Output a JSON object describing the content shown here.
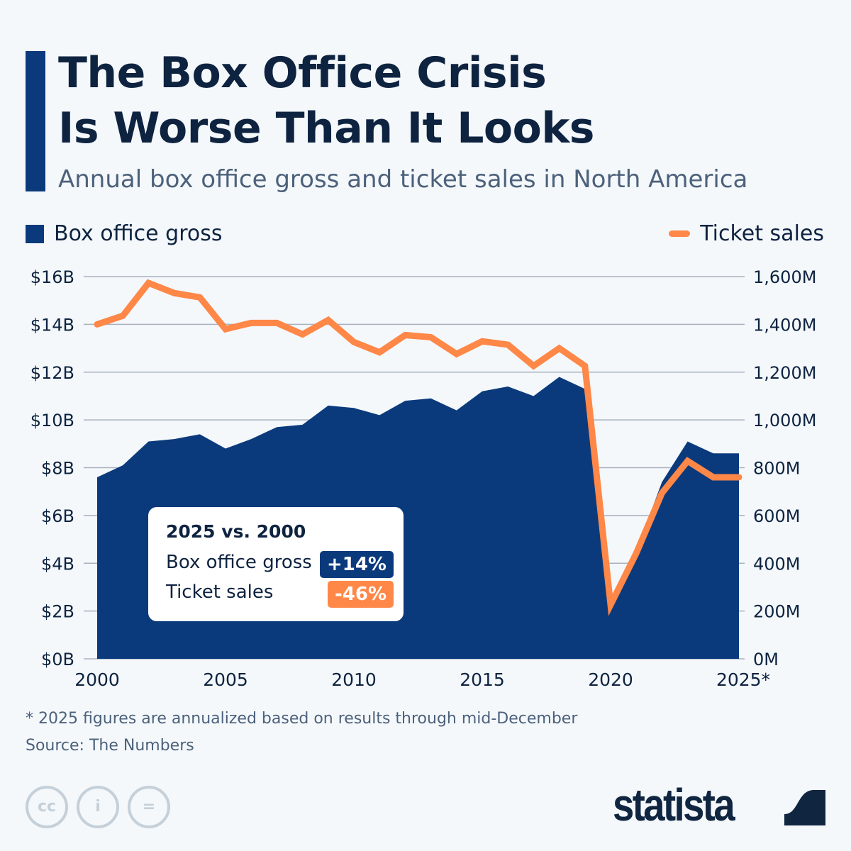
{
  "header": {
    "title_line1": "The Box Office Crisis",
    "title_line2": "Is Worse Than It Looks",
    "subtitle": "Annual box office gross and ticket sales in North America"
  },
  "colors": {
    "gross": "#0b3a7c",
    "tickets": "#ff8747",
    "grid": "#a9b1bf",
    "text": "#0e2340"
  },
  "chart_data": {
    "type": "area+line",
    "x": [
      2000,
      2001,
      2002,
      2003,
      2004,
      2005,
      2006,
      2007,
      2008,
      2009,
      2010,
      2011,
      2012,
      2013,
      2014,
      2015,
      2016,
      2017,
      2018,
      2019,
      2020,
      2021,
      2022,
      2023,
      2024,
      2025
    ],
    "x_ticks": [
      2000,
      2005,
      2010,
      2015,
      2020,
      2025
    ],
    "x_tick_labels": [
      "2000",
      "2005",
      "2010",
      "2015",
      "2020",
      "2025*"
    ],
    "series": [
      {
        "name": "Box office gross",
        "type": "area",
        "axis": "left",
        "unit": "$B",
        "values": [
          7.6,
          8.1,
          9.1,
          9.2,
          9.4,
          8.8,
          9.2,
          9.7,
          9.8,
          10.6,
          10.5,
          10.2,
          10.8,
          10.9,
          10.4,
          11.2,
          11.4,
          11.0,
          11.8,
          11.3,
          2.2,
          4.5,
          7.4,
          9.1,
          8.6,
          8.6
        ]
      },
      {
        "name": "Ticket sales",
        "type": "line",
        "axis": "right",
        "unit": "M",
        "values": [
          1400,
          1436,
          1573,
          1531,
          1513,
          1380,
          1406,
          1406,
          1358,
          1418,
          1326,
          1283,
          1355,
          1346,
          1276,
          1329,
          1315,
          1226,
          1300,
          1226,
          226,
          442,
          694,
          828,
          760,
          760
        ]
      }
    ],
    "y_left": {
      "range": [
        0,
        16
      ],
      "ticks": [
        0,
        2,
        4,
        6,
        8,
        10,
        12,
        14,
        16
      ],
      "tick_labels": [
        "$0B",
        "$2B",
        "$4B",
        "$6B",
        "$8B",
        "$10B",
        "$12B",
        "$14B",
        "$16B"
      ]
    },
    "y_right": {
      "range": [
        0,
        1600
      ],
      "ticks": [
        0,
        200,
        400,
        600,
        800,
        1000,
        1200,
        1400,
        1600
      ],
      "tick_labels": [
        "0M",
        "200M",
        "400M",
        "600M",
        "800M",
        "1,000M",
        "1,200M",
        "1,400M",
        "1,600M"
      ]
    },
    "grid": true,
    "legend": {
      "position": "top",
      "items": [
        "Box office gross",
        "Ticket sales"
      ]
    },
    "annotation": {
      "title": "2025 vs. 2000",
      "rows": [
        {
          "label": "Box office gross",
          "value": "+14%"
        },
        {
          "label": "Ticket sales",
          "value": "-46%"
        }
      ]
    }
  },
  "footer": {
    "note": "* 2025 figures are annualized based on results through mid-December",
    "source": "Source: The Numbers",
    "brand": "statista",
    "license_icons": [
      "cc-icon",
      "attribution-icon",
      "no-derivatives-icon"
    ]
  }
}
